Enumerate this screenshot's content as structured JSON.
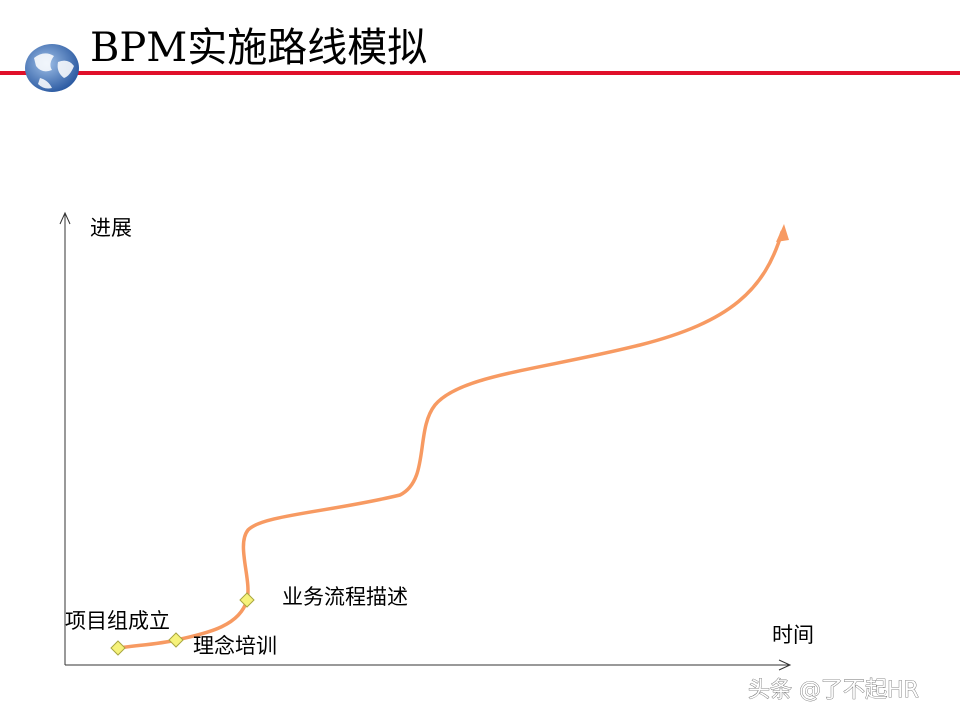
{
  "header": {
    "title": "BPM实施路线模拟"
  },
  "axes": {
    "y_label": "进展",
    "x_label": "时间"
  },
  "milestones": [
    {
      "label": "项目组成立"
    },
    {
      "label": "理念培训"
    },
    {
      "label": "业务流程描述"
    }
  ],
  "watermark": "头条 @了不起HR"
}
